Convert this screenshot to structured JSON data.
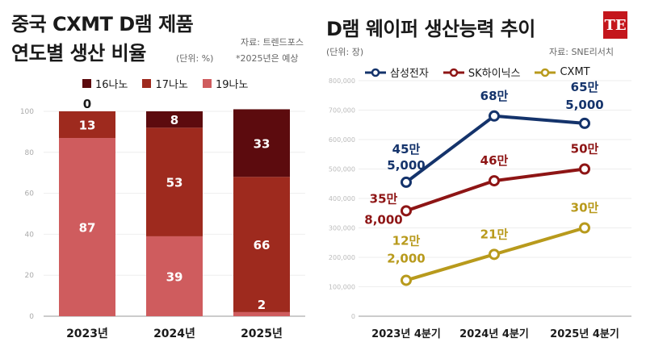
{
  "left": {
    "title_line1": "중국 CXMT D램 제품",
    "title_line2": "연도별 생산 비율",
    "unit": "(단위: %)",
    "source": "자료: 트렌드포스",
    "note": "*2025년은 예상"
  },
  "right": {
    "title": "D램 웨이퍼 생산능력 추이",
    "unit": "(단위: 장)",
    "source": "자료: SNE리서치"
  },
  "logo": {
    "text": "TE"
  },
  "colors": {
    "nm16": "#5c0b0e",
    "nm17": "#9e2a1e",
    "nm19": "#cf5c5e",
    "samsung": "#14336b",
    "skhynix": "#8e1515",
    "cxmt": "#b89a1c"
  },
  "chart_data": [
    {
      "type": "bar",
      "stacked": true,
      "categories": [
        "2023년",
        "2024년",
        "2025년"
      ],
      "series": [
        {
          "name": "16나노",
          "values": [
            0,
            8,
            33
          ]
        },
        {
          "name": "17나노",
          "values": [
            13,
            53,
            66
          ]
        },
        {
          "name": "19나노",
          "values": [
            87,
            39,
            2
          ]
        }
      ],
      "ylim": [
        0,
        100
      ],
      "yticks": [
        "0",
        "20",
        "40",
        "60",
        "80",
        "100"
      ],
      "legend": "top"
    },
    {
      "type": "line",
      "categories": [
        "2023년 4분기",
        "2024년 4분기",
        "2025년 4분기"
      ],
      "series": [
        {
          "name": "삼성전자",
          "values": [
            455000,
            680000,
            655000
          ],
          "labels": [
            [
              "45만",
              "5,000"
            ],
            [
              "68만"
            ],
            [
              "65만",
              "5,000"
            ]
          ]
        },
        {
          "name": "SK하이닉스",
          "values": [
            358000,
            460000,
            500000
          ],
          "labels": [
            [
              "35만",
              "8,000"
            ],
            [
              "46만"
            ],
            [
              "50만"
            ]
          ]
        },
        {
          "name": "CXMT",
          "values": [
            122000,
            210000,
            300000
          ],
          "labels": [
            [
              "12만",
              "2,000"
            ],
            [
              "21만"
            ],
            [
              "30만"
            ]
          ]
        }
      ],
      "ylim": [
        0,
        800000
      ],
      "yticks": [
        "0",
        "100,000",
        "200,000",
        "300,000",
        "400,000",
        "500,000",
        "600,000",
        "700,000",
        "800,000"
      ],
      "legend": "top"
    }
  ]
}
